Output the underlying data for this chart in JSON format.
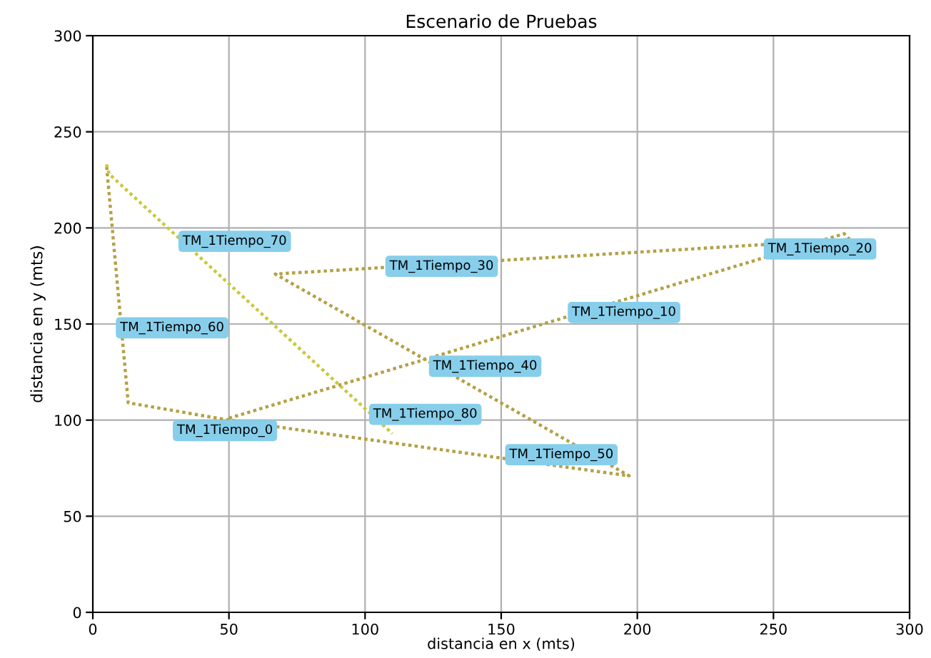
{
  "chart_data": {
    "type": "line",
    "title": "Escenario de Pruebas",
    "xlabel": "distancia en x (mts)",
    "ylabel": "distancia en y (mts)",
    "series": [
      {
        "color": "#b5a043",
        "x": [
          50,
          276,
          278,
          67,
          197,
          50,
          13,
          5
        ],
        "values": [
          101,
          197,
          194,
          176,
          71,
          100,
          109,
          233
        ]
      },
      {
        "color": "#c9c83e",
        "x": [
          5,
          6,
          110
        ],
        "values": [
          233,
          228,
          93
        ]
      }
    ],
    "line_style": "dotted",
    "marker": "none",
    "xlim": [
      0,
      300
    ],
    "ylim": [
      0,
      300
    ],
    "xticks": [
      0,
      50,
      100,
      150,
      200,
      250,
      300
    ],
    "yticks": [
      0,
      50,
      100,
      150,
      200,
      250,
      300
    ],
    "grid": true,
    "legend": false,
    "annotations": [
      "TM_1Tiempo_0",
      {
        "text": "TM_1Tiempo_10",
        "x": 176,
        "y": 156
      },
      {
        "text": "TM_1Tiempo_20",
        "x": 248,
        "y": 189
      },
      {
        "text": "TM_1Tiempo_30",
        "x": 109,
        "y": 180
      },
      {
        "text": "TM_1Tiempo_40",
        "x": 125,
        "y": 128
      },
      {
        "text": "TM_1Tiempo_50",
        "x": 153,
        "y": 82
      },
      {
        "text": "TM_1Tiempo_60",
        "x": 10,
        "y": 148
      },
      {
        "text": "TM_1Tiempo_70",
        "x": 33,
        "y": 193
      },
      {
        "text": "TM_1Tiempo_80",
        "x": 103,
        "y": 103
      }
    ]
  }
}
